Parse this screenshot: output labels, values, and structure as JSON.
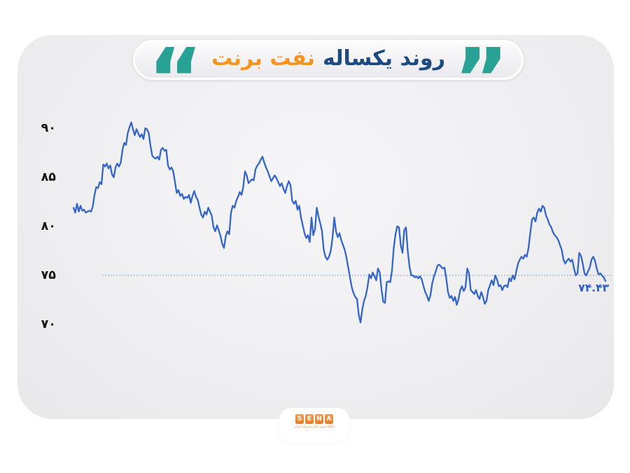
{
  "header": {
    "quote_open": "“",
    "quote_close": "”",
    "title_main": "روند یکساله",
    "title_accent": "نفت برنت"
  },
  "colors": {
    "title_main": "#1d4a80",
    "title_accent": "#f7941d",
    "quote_teal": "#27a295",
    "line_blue": "#3465c9",
    "reference_dotted": "#94a8c9",
    "last_value_blue": "#2b5ec5",
    "logo_orange": "#e8883b",
    "card_gray": "#ededef"
  },
  "footer": {
    "logo_letters": [
      "S",
      "E",
      "N",
      "A"
    ],
    "tagline": "پایگاه خبری بازار سرمایه ایران"
  },
  "chart_data": {
    "type": "line",
    "title": "روند یکساله نفت برنت",
    "y_ticks": [
      90,
      85,
      80,
      75,
      70
    ],
    "y_tick_labels": [
      "۹۰",
      "۸۵",
      "۸۰",
      "۷۵",
      "۷۰"
    ],
    "ylim": [
      68.5,
      92
    ],
    "grid": false,
    "reference_level": 75,
    "last_value": 74.43,
    "last_value_label": "۷۴.۴۳",
    "values": [
      81.9,
      81.4,
      82.3,
      81.5,
      82.1,
      81.6,
      81.7,
      81.4,
      81.5,
      81.6,
      81.5,
      82.0,
      83.2,
      84.0,
      83.9,
      84.5,
      84.3,
      86.3,
      86.1,
      86.4,
      85.9,
      86.2,
      85.3,
      85.0,
      86.0,
      86.4,
      86.1,
      86.5,
      87.8,
      88.5,
      88.3,
      89.5,
      90.1,
      90.6,
      89.9,
      89.3,
      89.9,
      89.5,
      89.1,
      89.4,
      88.9,
      90.0,
      89.9,
      89.5,
      88.2,
      87.2,
      87.0,
      86.9,
      87.1,
      86.8,
      87.8,
      88.0,
      87.7,
      87.8,
      86.2,
      85.8,
      86.0,
      85.6,
      84.5,
      83.4,
      83.7,
      83.1,
      83.3,
      82.8,
      83.0,
      82.9,
      83.2,
      82.4,
      83.1,
      83.6,
      83.0,
      82.7,
      81.9,
      81.2,
      80.9,
      81.5,
      81.2,
      81.9,
      81.5,
      81.1,
      79.9,
      79.5,
      80.1,
      79.6,
      79.0,
      78.2,
      77.8,
      79.0,
      79.5,
      79.2,
      81.4,
      82.1,
      81.9,
      82.6,
      83.0,
      83.5,
      83.2,
      84.0,
      85.6,
      85.2,
      84.4,
      84.6,
      84.8,
      84.7,
      85.8,
      86.2,
      86.4,
      86.8,
      87.1,
      86.5,
      86.0,
      85.6,
      85.1,
      84.6,
      84.9,
      85.2,
      84.9,
      84.5,
      84.1,
      84.4,
      83.8,
      83.4,
      84.1,
      84.6,
      84.2,
      82.6,
      82.3,
      82.6,
      81.7,
      82.1,
      80.9,
      80.1,
      79.3,
      78.8,
      79.1,
      78.4,
      80.9,
      79.1,
      79.7,
      81.9,
      81.0,
      80.3,
      79.5,
      77.6,
      76.9,
      76.6,
      76.9,
      77.5,
      78.8,
      80.9,
      79.5,
      78.9,
      79.3,
      78.6,
      78.1,
      77.6,
      76.8,
      75.8,
      74.8,
      73.8,
      73.2,
      72.8,
      72.6,
      71.0,
      70.2,
      71.5,
      72.4,
      72.9,
      73.8,
      75.1,
      74.7,
      75.3,
      74.9,
      74.5,
      75.7,
      75.3,
      73.6,
      72.3,
      72.2,
      74.3,
      74.4,
      74.3,
      75.5,
      77.8,
      79.2,
      80.0,
      79.9,
      78.1,
      77.3,
      79.6,
      79.9,
      77.5,
      75.9,
      75.0,
      75.0,
      74.8,
      74.9,
      74.7,
      74.9,
      74.6,
      73.9,
      73.3,
      72.9,
      72.4,
      73.0,
      74.2,
      74.9,
      75.4,
      76.0,
      76.1,
      75.9,
      75.7,
      75.8,
      74.7,
      73.3,
      72.7,
      72.9,
      72.4,
      72.8,
      72.0,
      72.6,
      73.5,
      73.9,
      73.4,
      73.8,
      75.7,
      75.2,
      73.5,
      73.3,
      73.1,
      73.5,
      72.9,
      72.6,
      73.3,
      72.8,
      72.1,
      72.4,
      73.5,
      74.0,
      74.5,
      74.0,
      75.0,
      74.6,
      73.9,
      74.0,
      73.5,
      73.9,
      74.0,
      73.8,
      74.7,
      74.4,
      75.0,
      74.6,
      75.4,
      76.2,
      76.6,
      76.9,
      76.7,
      77.1,
      76.9,
      77.8,
      79.3,
      80.7,
      80.9,
      80.5,
      81.4,
      81.8,
      81.5,
      82.1,
      81.9,
      81.1,
      80.7,
      80.2,
      79.9,
      79.4,
      79.1,
      78.9,
      78.6,
      78.1,
      77.6,
      76.6,
      76.2,
      76.5,
      76.7,
      76.4,
      76.6,
      75.7,
      75.0,
      75.2,
      77.3,
      77.0,
      76.2,
      75.2,
      75.0,
      75.4,
      75.8,
      76.6,
      76.9,
      76.5,
      75.7,
      75.1,
      75.2,
      75.0,
      74.8,
      74.43
    ]
  }
}
